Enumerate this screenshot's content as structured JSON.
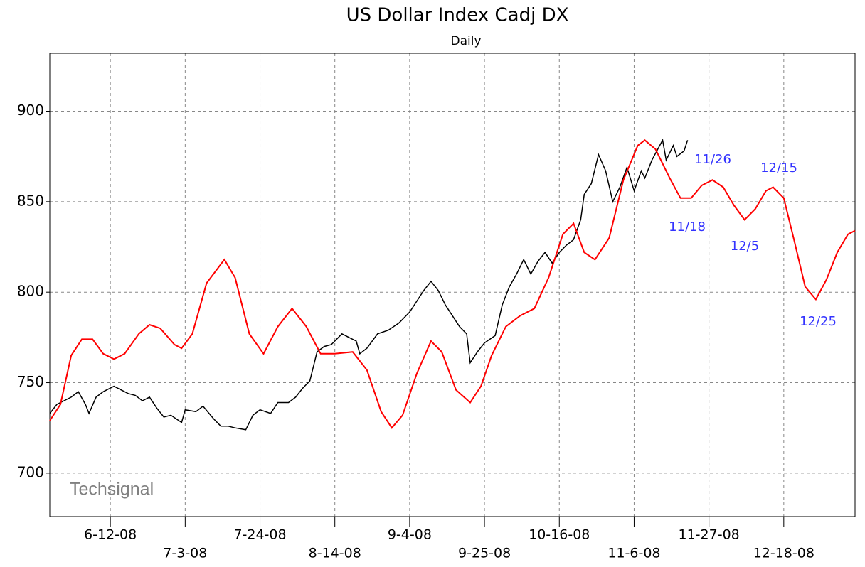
{
  "chart_data": {
    "type": "line",
    "title": "US Dollar Index Cadj DX",
    "subtitle": "Daily",
    "watermark": "Techsignal",
    "xlim": [
      "2008-05-26",
      "2009-01-07"
    ],
    "xticks": [
      {
        "value": "2008-06-12",
        "label": "6-12-08"
      },
      {
        "value": "2008-07-03",
        "label": "7-3-08"
      },
      {
        "value": "2008-07-24",
        "label": "7-24-08"
      },
      {
        "value": "2008-08-14",
        "label": "8-14-08"
      },
      {
        "value": "2008-09-04",
        "label": "9-4-08"
      },
      {
        "value": "2008-09-25",
        "label": "9-25-08"
      },
      {
        "value": "2008-10-16",
        "label": "10-16-08"
      },
      {
        "value": "2008-11-06",
        "label": "11-6-08"
      },
      {
        "value": "2008-11-27",
        "label": "11-27-08"
      },
      {
        "value": "2008-12-18",
        "label": "12-18-08"
      }
    ],
    "ylim": [
      676,
      932
    ],
    "yticks": [
      700,
      750,
      800,
      850,
      900
    ],
    "grid": true,
    "annotations": [
      "11/26",
      "12/15",
      "11/18",
      "12/5",
      "12/25"
    ],
    "annotation_color": "#3333ff",
    "series": [
      {
        "color": "#000000",
        "x": [
          "2008-05-26",
          "2008-05-28",
          "2008-05-30",
          "2008-06-01",
          "2008-06-03",
          "2008-06-05",
          "2008-06-06",
          "2008-06-08",
          "2008-06-10",
          "2008-06-11",
          "2008-06-13",
          "2008-06-15",
          "2008-06-17",
          "2008-06-19",
          "2008-06-21",
          "2008-06-23",
          "2008-06-25",
          "2008-06-27",
          "2008-06-29",
          "2008-07-02",
          "2008-07-03",
          "2008-07-06",
          "2008-07-08",
          "2008-07-11",
          "2008-07-13",
          "2008-07-15",
          "2008-07-17",
          "2008-07-20",
          "2008-07-22",
          "2008-07-24",
          "2008-07-27",
          "2008-07-29",
          "2008-08-01",
          "2008-08-03",
          "2008-08-05",
          "2008-08-07",
          "2008-08-09",
          "2008-08-11",
          "2008-08-13",
          "2008-08-16",
          "2008-08-18",
          "2008-08-20",
          "2008-08-21",
          "2008-08-23",
          "2008-08-26",
          "2008-08-29",
          "2008-09-01",
          "2008-09-04",
          "2008-09-06",
          "2008-09-08",
          "2008-09-10",
          "2008-09-12",
          "2008-09-14",
          "2008-09-16",
          "2008-09-18",
          "2008-09-20",
          "2008-09-21",
          "2008-09-23",
          "2008-09-25",
          "2008-09-28",
          "2008-09-30",
          "2008-10-02",
          "2008-10-04",
          "2008-10-06",
          "2008-10-08",
          "2008-10-10",
          "2008-10-12",
          "2008-10-14",
          "2008-10-16",
          "2008-10-18",
          "2008-10-20",
          "2008-10-22",
          "2008-10-23",
          "2008-10-25",
          "2008-10-27",
          "2008-10-29",
          "2008-10-31",
          "2008-11-02",
          "2008-11-04",
          "2008-11-06",
          "2008-11-08",
          "2008-11-09",
          "2008-11-11",
          "2008-11-14",
          "2008-11-15",
          "2008-11-17",
          "2008-11-18",
          "2008-11-20",
          "2008-11-21"
        ],
        "values": [
          733,
          738,
          740,
          742,
          745,
          738,
          733,
          742,
          745,
          746,
          748,
          746,
          744,
          743,
          740,
          742,
          736,
          731,
          732,
          728,
          735,
          734,
          737,
          730,
          726,
          726,
          725,
          724,
          732,
          735,
          733,
          739,
          739,
          742,
          747,
          751,
          767,
          770,
          771,
          777,
          775,
          773,
          766,
          769,
          777,
          779,
          783,
          789,
          795,
          801,
          806,
          801,
          793,
          787,
          781,
          777,
          761,
          767,
          772,
          776,
          793,
          803,
          810,
          818,
          810,
          817,
          822,
          816,
          822,
          826,
          829,
          840,
          854,
          860,
          876,
          867,
          850,
          858,
          869,
          856,
          867,
          863,
          873,
          884,
          873,
          881,
          875,
          878,
          884
        ]
      },
      {
        "color": "#ff0000",
        "x": [
          "2008-05-26",
          "2008-05-29",
          "2008-06-01",
          "2008-06-04",
          "2008-06-07",
          "2008-06-10",
          "2008-06-13",
          "2008-06-16",
          "2008-06-20",
          "2008-06-23",
          "2008-06-26",
          "2008-06-30",
          "2008-07-02",
          "2008-07-05",
          "2008-07-09",
          "2008-07-14",
          "2008-07-17",
          "2008-07-21",
          "2008-07-25",
          "2008-07-29",
          "2008-08-02",
          "2008-08-06",
          "2008-08-10",
          "2008-08-14",
          "2008-08-19",
          "2008-08-23",
          "2008-08-27",
          "2008-08-30",
          "2008-09-02",
          "2008-09-06",
          "2008-09-10",
          "2008-09-13",
          "2008-09-17",
          "2008-09-21",
          "2008-09-24",
          "2008-09-27",
          "2008-10-01",
          "2008-10-05",
          "2008-10-09",
          "2008-10-13",
          "2008-10-17",
          "2008-10-20",
          "2008-10-23",
          "2008-10-26",
          "2008-10-30",
          "2008-11-03",
          "2008-11-07",
          "2008-11-09",
          "2008-11-12",
          "2008-11-16",
          "2008-11-19",
          "2008-11-22",
          "2008-11-25",
          "2008-11-28",
          "2008-12-01",
          "2008-12-04",
          "2008-12-07",
          "2008-12-10",
          "2008-12-13",
          "2008-12-15",
          "2008-12-18",
          "2008-12-21",
          "2008-12-24",
          "2008-12-27",
          "2008-12-30",
          "2009-01-02",
          "2009-01-05",
          "2009-01-07"
        ],
        "values": [
          729,
          738,
          765,
          774,
          774,
          766,
          763,
          766,
          777,
          782,
          780,
          771,
          769,
          777,
          805,
          818,
          808,
          777,
          766,
          781,
          791,
          781,
          766,
          766,
          767,
          757,
          734,
          725,
          732,
          755,
          773,
          767,
          746,
          739,
          748,
          765,
          781,
          787,
          791,
          808,
          832,
          838,
          822,
          818,
          830,
          862,
          881,
          884,
          879,
          863,
          852,
          852,
          859,
          862,
          858,
          848,
          840,
          846,
          856,
          858,
          852,
          828,
          803,
          796,
          807,
          822,
          832,
          834
        ]
      }
    ]
  }
}
